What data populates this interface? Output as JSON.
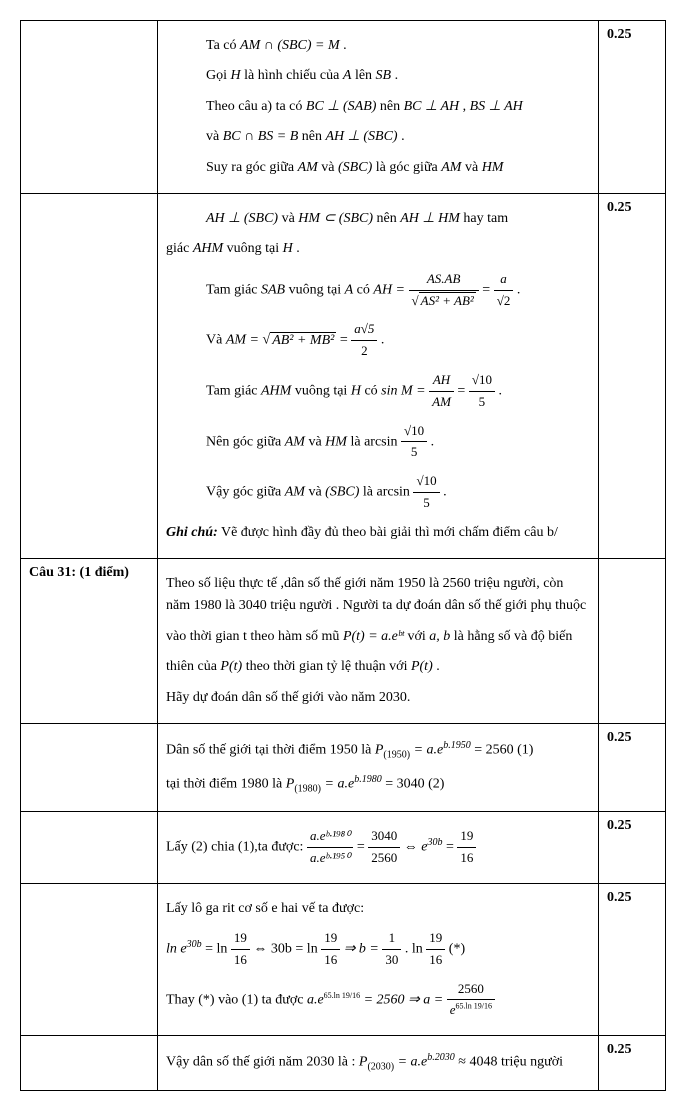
{
  "row1": {
    "l1a": "Ta có ",
    "l1b": "AM ∩ (SBC) = M",
    "l1c": " .",
    "l2a": "Gọi ",
    "l2b": "H",
    "l2c": " là hình chiếu của ",
    "l2d": "A",
    "l2e": " lên ",
    "l2f": "SB",
    "l2g": " .",
    "l3a": "Theo câu a) ta có ",
    "l3b": "BC ⊥ (SAB)",
    "l3c": " nên ",
    "l3d": "BC ⊥ AH",
    "l3e": " , ",
    "l3f": "BS ⊥ AH",
    "l4a": "và ",
    "l4b": "BC ∩ BS = B",
    "l4c": " nên ",
    "l4d": "AH ⊥ (SBC)",
    "l4e": " .",
    "l5a": "Suy ra góc giữa ",
    "l5b": "AM",
    "l5c": " và ",
    "l5d": "(SBC)",
    "l5e": " là góc giữa ",
    "l5f": "AM",
    "l5g": " và ",
    "l5h": "HM",
    "score": "0.25"
  },
  "row2": {
    "l1a": "AH ⊥ (SBC)",
    "l1b": " và ",
    "l1c": "HM ⊂ (SBC)",
    "l1d": " nên ",
    "l1e": "AH ⊥ HM",
    "l1f": " hay tam",
    "l2a": "giác ",
    "l2b": "AHM",
    "l2c": " vuông tại ",
    "l2d": "H",
    "l2e": " .",
    "l3a": "Tam giác ",
    "l3b": "SAB",
    "l3c": " vuông tại ",
    "l3d": "A",
    "l3e": " có ",
    "l3f": "AH = ",
    "f1num": "AS.AB",
    "f1den_pre": "√",
    "f1den": "AS² + AB²",
    "eq1": " = ",
    "f2num": "a",
    "f2den": "√2",
    "l3g": " .",
    "l4a": "Và ",
    "l4b": "AM = ",
    "l4c_pre": "√",
    "l4c": "AB² + MB²",
    "l4d": " = ",
    "f3num": "a√5",
    "f3den": "2",
    "l4e": " .",
    "l5a": "Tam giác ",
    "l5b": "AHM",
    "l5c": " vuông tại ",
    "l5d": "H",
    "l5e": " có ",
    "l5f": "sin M = ",
    "f4num": "AH",
    "f4den": "AM",
    "eq2": " = ",
    "f5num": "√10",
    "f5den": "5",
    "l5g": " .",
    "l6a": "Nên góc giữa ",
    "l6b": "AM",
    "l6c": " và ",
    "l6d": "HM",
    "l6e": " là ",
    "l6f": "arcsin ",
    "f6num": "√10",
    "f6den": "5",
    "l6g": " .",
    "l7a": "Vậy góc giữa ",
    "l7b": "AM",
    "l7c": " và ",
    "l7d": "(SBC)",
    "l7e": " là ",
    "l7f": "arcsin ",
    "f7num": "√10",
    "f7den": "5",
    "l7g": " .",
    "note_label": "Ghi chú:",
    "note_text": " Vẽ được hình đầy đủ theo bài giải thì mới chấm điểm câu b/",
    "score": "0.25"
  },
  "row3": {
    "label": "Câu 31: (1 điểm)",
    "l1": "Theo số liệu thực tế ,dân số thế giới năm 1950 là 2560 triệu người, còn năm 1980 là 3040 triệu người . Người ta dự đoán  dân số thế giới phụ thuộc",
    "l2a": "vào thời gian t theo hàm số mũ ",
    "l2b": "P(t) = a.eᵇᵗ",
    "l2c": " với ",
    "l2d": "a, b",
    "l2e": " là hằng số và độ biến",
    "l3a": "thiên của ",
    "l3b": "P(t)",
    "l3c": " theo thời gian tỷ lệ thuận với ",
    "l3d": "P(t)",
    "l3e": " .",
    "l4": "Hãy dự đoán dân số thế giới vào năm 2030."
  },
  "row4": {
    "l1a": "Dân số thế giới tại thời điểm 1950 là ",
    "l1b": "P",
    "l1sub": "(1950)",
    "l1c": " = a.e",
    "l1sup": "b.1950",
    "l1d": " = 2560 (1)",
    "l2a": "tại thời điểm 1980 là ",
    "l2b": "P",
    "l2sub": "(1980)",
    "l2c": " = a.e",
    "l2sup": "b.1980",
    "l2d": " = 3040  (2)",
    "score": "0.25"
  },
  "row5": {
    "l1a": "Lấy (2) chia (1),ta được: ",
    "f1num": "a.eᵇ·¹⁹⁸⁰",
    "f1den": "a.eᵇ·¹⁹⁵⁰",
    "eq1": " = ",
    "f2num": "3040",
    "f2den": "2560",
    "eq2": " ⇔ e",
    "eq2sup": "30b",
    "eq3": " = ",
    "f3num": "19",
    "f3den": "16",
    "score": "0.25"
  },
  "row6": {
    "l1": "Lấy lô ga rit cơ số e hai vế ta được:",
    "l2a": "ln e",
    "l2sup": "30b",
    "l2b": " = ln ",
    "f1num": "19",
    "f1den": "16",
    "l2c": " ⇔ 30b = ln ",
    "f2num": "19",
    "f2den": "16",
    "l2d": " ⇒ b = ",
    "f3num": "1",
    "f3den": "30",
    "l2e": " . ln ",
    "f4num": "19",
    "f4den": "16",
    "l2f": " (*)",
    "l3a": "Thay (*) vào (1) ta được ",
    "l3b": "a.e",
    "l3sup": "65.ln 19/16",
    "l3c": " = 2560 ⇒ a = ",
    "f5num": "2560",
    "f5den_pre": "e",
    "f5den_sup": "65.ln 19/16",
    "score": "0.25"
  },
  "row7": {
    "l1a": "Vậy dân số thế giới năm 2030 là : ",
    "l1b": "P",
    "l1sub": "(2030)",
    "l1c": " = a.e",
    "l1sup": "b.2030",
    "l1d": " ≈ 4048 triệu người",
    "score": "0.25"
  }
}
